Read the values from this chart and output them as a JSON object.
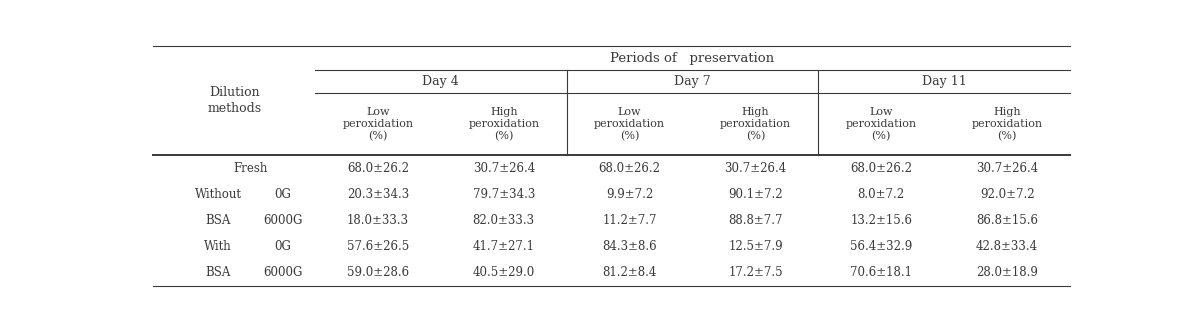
{
  "title": "Periods of   preservation",
  "col_groups": [
    "Day 4",
    "Day 7",
    "Day 11"
  ],
  "col_subheaders": [
    "Low\nperoxidation\n(%)",
    "High\nperoxidation\n(%)",
    "Low\nperoxidation\n(%)",
    "High\nperoxidation\n(%)",
    "Low\nperoxidation\n(%)",
    "High\nperoxidation\n(%)"
  ],
  "row_label1": [
    "",
    "Without",
    "BSA",
    "With",
    "BSA"
  ],
  "row_label2": [
    "Fresh",
    "0G",
    "6000G",
    "0G",
    "6000G"
  ],
  "table_data": [
    [
      "68.0±26.2",
      "30.7±26.4",
      "68.0±26.2",
      "30.7±26.4",
      "68.0±26.2",
      "30.7±26.4"
    ],
    [
      "20.3±34.3",
      "79.7±34.3",
      "9.9±7.2",
      "90.1±7.2",
      "8.0±7.2",
      "92.0±7.2"
    ],
    [
      "18.0±33.3",
      "82.0±33.3",
      "11.2±7.7",
      "88.8±7.7",
      "13.2±15.6",
      "86.8±15.6"
    ],
    [
      "57.6±26.5",
      "41.7±27.1",
      "84.3±8.6",
      "12.5±7.9",
      "56.4±32.9",
      "42.8±33.4"
    ],
    [
      "59.0±28.6",
      "40.5±29.0",
      "81.2±8.4",
      "17.2±7.5",
      "70.6±18.1",
      "28.0±18.9"
    ]
  ],
  "bg_color": "#ffffff",
  "text_color": "#3a3a3a",
  "line_color": "#3a3a3a",
  "font_size": 8.5,
  "header_font_size": 9.0,
  "title_font_size": 9.5
}
